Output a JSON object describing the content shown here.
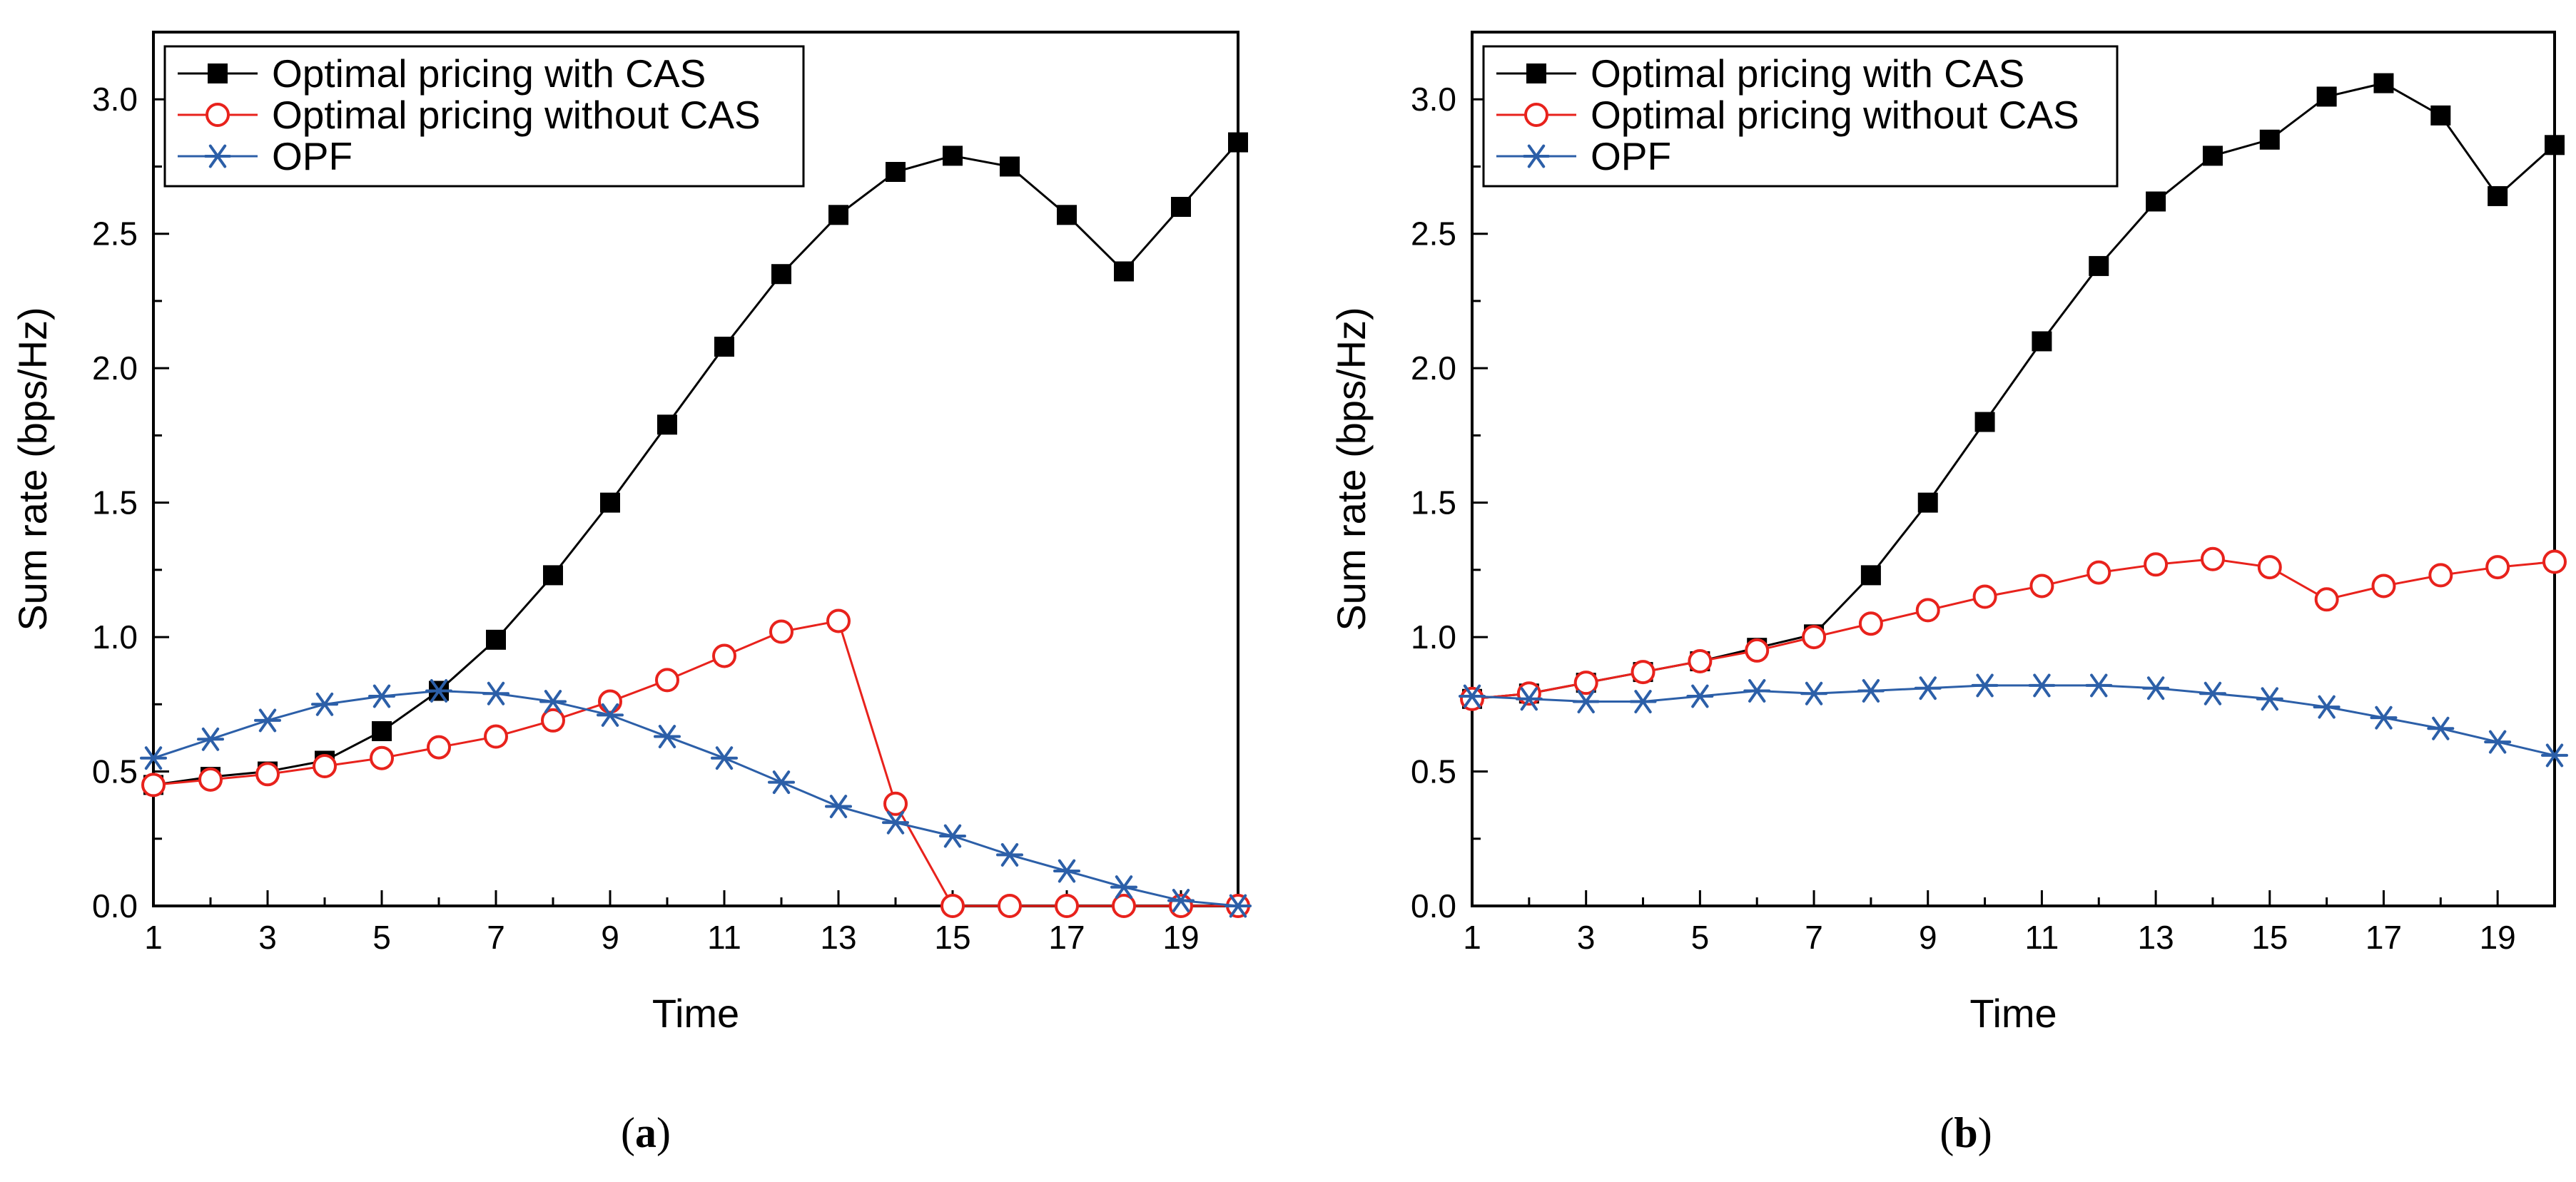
{
  "chart_data": [
    {
      "type": "line",
      "panel_label": "a",
      "xlabel": "Time",
      "ylabel": "Sum rate (bps/Hz)",
      "xlim": [
        1,
        20
      ],
      "ylim": [
        0,
        3.25
      ],
      "xticks": [
        1,
        3,
        5,
        7,
        9,
        11,
        13,
        15,
        17,
        19
      ],
      "yticks": [
        0.0,
        0.5,
        1.0,
        1.5,
        2.0,
        2.5,
        3.0
      ],
      "ytick_labels": [
        "0.0",
        "0.5",
        "1.0",
        "1.5",
        "2.0",
        "2.5",
        "3.0"
      ],
      "legend_position": "top-left",
      "x": [
        1,
        2,
        3,
        4,
        5,
        6,
        7,
        8,
        9,
        10,
        11,
        12,
        13,
        14,
        15,
        16,
        17,
        18,
        19,
        20
      ],
      "series": [
        {
          "name": "Optimal pricing with CAS",
          "color": "#000000",
          "marker": "filled-square",
          "values": [
            0.45,
            0.48,
            0.5,
            0.54,
            0.65,
            0.8,
            0.99,
            1.23,
            1.5,
            1.79,
            2.08,
            2.35,
            2.57,
            2.73,
            2.79,
            2.75,
            2.57,
            2.36,
            2.6,
            2.84
          ]
        },
        {
          "name": "Optimal pricing without CAS",
          "color": "#e8221c",
          "marker": "open-circle",
          "values": [
            0.45,
            0.47,
            0.49,
            0.52,
            0.55,
            0.59,
            0.63,
            0.69,
            0.76,
            0.84,
            0.93,
            1.02,
            1.06,
            0.38,
            0.0,
            0.0,
            0.0,
            0.0,
            0.0,
            0.0
          ]
        },
        {
          "name": "OPF",
          "color": "#2c5fa8",
          "marker": "asterisk",
          "values": [
            0.55,
            0.62,
            0.69,
            0.75,
            0.78,
            0.8,
            0.79,
            0.76,
            0.71,
            0.63,
            0.55,
            0.46,
            0.37,
            0.31,
            0.26,
            0.19,
            0.13,
            0.07,
            0.02,
            0.0
          ]
        }
      ]
    },
    {
      "type": "line",
      "panel_label": "b",
      "xlabel": "Time",
      "ylabel": "Sum rate (bps/Hz)",
      "xlim": [
        1,
        20
      ],
      "ylim": [
        0,
        3.25
      ],
      "xticks": [
        1,
        3,
        5,
        7,
        9,
        11,
        13,
        15,
        17,
        19
      ],
      "yticks": [
        0.0,
        0.5,
        1.0,
        1.5,
        2.0,
        2.5,
        3.0
      ],
      "ytick_labels": [
        "0.0",
        "0.5",
        "1.0",
        "1.5",
        "2.0",
        "2.5",
        "3.0"
      ],
      "legend_position": "top-left",
      "x": [
        1,
        2,
        3,
        4,
        5,
        6,
        7,
        8,
        9,
        10,
        11,
        12,
        13,
        14,
        15,
        16,
        17,
        18,
        19,
        20
      ],
      "series": [
        {
          "name": "Optimal pricing with CAS",
          "color": "#000000",
          "marker": "filled-square",
          "values": [
            0.77,
            0.79,
            0.83,
            0.87,
            0.91,
            0.96,
            1.01,
            1.23,
            1.5,
            1.8,
            2.1,
            2.38,
            2.62,
            2.79,
            2.85,
            3.01,
            3.06,
            2.94,
            2.64,
            2.83
          ]
        },
        {
          "name": "Optimal pricing without CAS",
          "color": "#e8221c",
          "marker": "open-circle",
          "values": [
            0.77,
            0.79,
            0.83,
            0.87,
            0.91,
            0.95,
            1.0,
            1.05,
            1.1,
            1.15,
            1.19,
            1.24,
            1.27,
            1.29,
            1.26,
            1.14,
            1.19,
            1.23,
            1.26,
            1.28
          ]
        },
        {
          "name": "OPF",
          "color": "#2c5fa8",
          "marker": "asterisk",
          "values": [
            0.78,
            0.77,
            0.76,
            0.76,
            0.78,
            0.8,
            0.79,
            0.8,
            0.81,
            0.82,
            0.82,
            0.82,
            0.81,
            0.79,
            0.77,
            0.74,
            0.7,
            0.66,
            0.61,
            0.56
          ]
        }
      ]
    }
  ]
}
